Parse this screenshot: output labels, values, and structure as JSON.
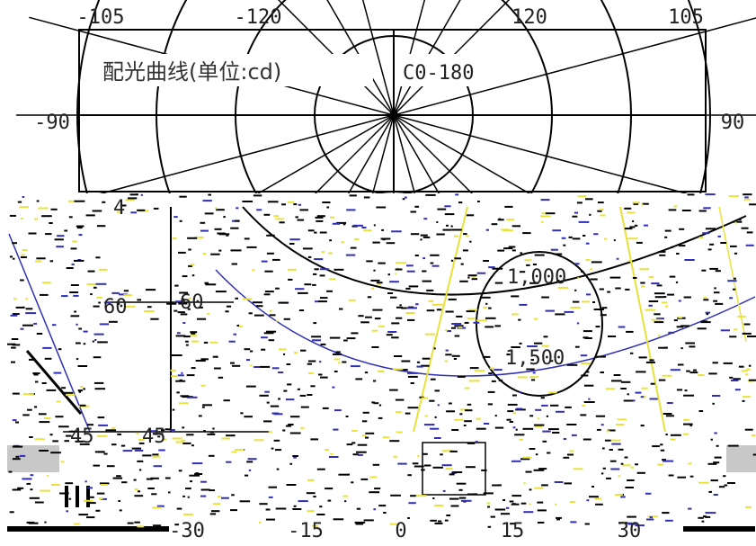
{
  "chart_data": {
    "type": "polar",
    "title": "配光曲线(单位:cd)",
    "plane_label": "C0-180",
    "top_angle_labels": [
      "-105",
      "-120",
      "120",
      "105"
    ],
    "side_angle_labels": [
      "-90",
      "90"
    ],
    "inner_labels": [
      "4",
      "60",
      "60",
      "45",
      "45",
      "1,000",
      "1,500"
    ],
    "bottom_labels": [
      "-30",
      "-15",
      "0",
      "15",
      "30"
    ],
    "ring_values_cd": [
      500,
      1000,
      1500
    ],
    "radial_angles_deg": [
      -105,
      -90,
      -75,
      -60,
      -45,
      -30,
      -15,
      0,
      15,
      30,
      45,
      60,
      75,
      90,
      105
    ],
    "grid": true
  },
  "colors": {
    "line": "#000000",
    "accent": "#2f2fb8",
    "highlight": "#e8e23a",
    "gray_block": "#c8c8c8"
  }
}
